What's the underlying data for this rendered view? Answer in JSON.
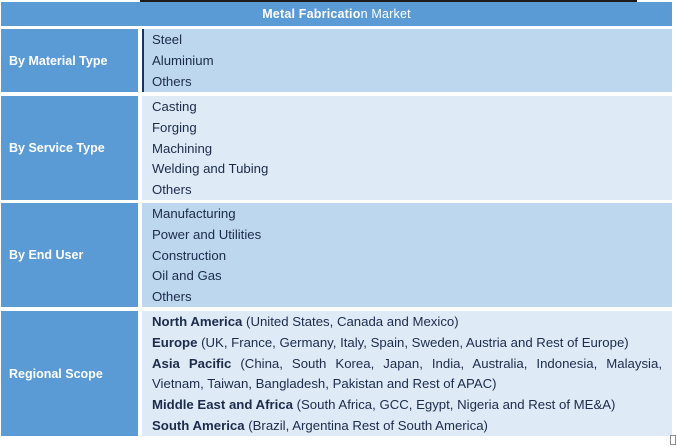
{
  "title": {
    "text": "Metal Fabrication Market",
    "bold_part": "Metal Fabricatio",
    "regular_part": "n Market"
  },
  "rows": [
    {
      "label": "By Material Type",
      "items": [
        "Steel",
        "Aluminium",
        "Others"
      ]
    },
    {
      "label": "By Service Type",
      "items": [
        "Casting",
        "Forging",
        "Machining",
        "Welding and Tubing",
        "Others"
      ]
    },
    {
      "label": "By End User",
      "items": [
        "Manufacturing",
        "Power and Utilities",
        "Construction",
        "Oil and Gas",
        "Others"
      ]
    },
    {
      "label": "Regional Scope",
      "regions": [
        {
          "name": "North America",
          "detail": " (United States, Canada and Mexico)"
        },
        {
          "name": "Europe",
          "detail": " (UK, France, Germany, Italy, Spain, Sweden, Austria and Rest of Europe)"
        },
        {
          "name": "Asia Pacific",
          "detail": " (China, South Korea, Japan, India, Australia, Indonesia, Malaysia, Vietnam, Taiwan, Bangladesh, Pakistan and Rest of APAC)"
        },
        {
          "name": "Middle East and Africa",
          "detail": " (South Africa, GCC, Egypt, Nigeria and Rest of ME&A)"
        },
        {
          "name": "South America",
          "detail": " (Brazil, Argentina Rest of South America)"
        }
      ]
    }
  ],
  "colors": {
    "header_blue": "#5B9BD5",
    "band_dark": "#BDD7EE",
    "band_light": "#DEEAF6",
    "label_text": "#FFFFFF",
    "body_text": "#1C2B4A",
    "accent_border": "#17375E"
  }
}
